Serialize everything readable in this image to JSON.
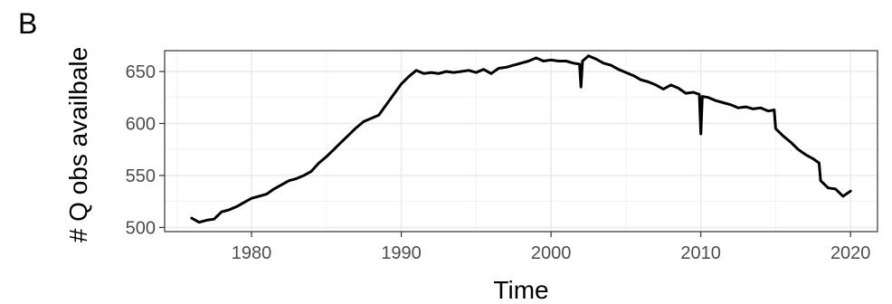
{
  "panel_label": "B",
  "chart_data": {
    "type": "line",
    "title": "",
    "xlabel": "Time",
    "ylabel": "# Q obs availbale",
    "xlim": [
      1974.2,
      2021.8
    ],
    "ylim": [
      496,
      670
    ],
    "x_ticks": [
      1980,
      1990,
      2000,
      2010,
      2020
    ],
    "x_tick_labels": [
      "1980",
      "1990",
      "2000",
      "2010",
      "2020"
    ],
    "y_ticks": [
      500,
      550,
      600,
      650
    ],
    "y_tick_labels": [
      "500",
      "550",
      "600",
      "650"
    ],
    "x_minor_ticks": [
      1975,
      1985,
      1995,
      2005,
      2015
    ],
    "y_minor_ticks": [
      525,
      575,
      625
    ],
    "grid": true,
    "theme": "bw",
    "line_color": "#000000",
    "series": [
      {
        "name": "",
        "x": [
          1976.0,
          1976.5,
          1977.0,
          1977.5,
          1978.0,
          1978.5,
          1979.0,
          1979.5,
          1980.0,
          1980.5,
          1981.0,
          1981.5,
          1982.0,
          1982.5,
          1983.0,
          1983.5,
          1984.0,
          1984.5,
          1985.0,
          1985.5,
          1986.0,
          1986.5,
          1987.0,
          1987.5,
          1988.0,
          1988.5,
          1989.0,
          1989.5,
          1990.0,
          1990.5,
          1991.0,
          1991.5,
          1992.0,
          1992.5,
          1993.0,
          1993.5,
          1994.0,
          1994.5,
          1995.0,
          1995.5,
          1996.0,
          1996.5,
          1997.0,
          1997.5,
          1998.0,
          1998.5,
          1999.0,
          1999.5,
          2000.0,
          2000.5,
          2001.0,
          2001.5,
          2001.9,
          2002.0,
          2002.1,
          2002.5,
          2003.0,
          2003.5,
          2004.0,
          2004.5,
          2005.0,
          2005.5,
          2006.0,
          2006.5,
          2007.0,
          2007.5,
          2008.0,
          2008.5,
          2009.0,
          2009.5,
          2009.9,
          2010.0,
          2010.1,
          2010.5,
          2011.0,
          2011.5,
          2012.0,
          2012.5,
          2013.0,
          2013.5,
          2014.0,
          2014.5,
          2014.9,
          2015.0,
          2015.5,
          2016.0,
          2016.5,
          2017.0,
          2017.5,
          2017.9,
          2018.0,
          2018.5,
          2019.0,
          2019.5,
          2020.0
        ],
        "values": [
          509,
          505,
          507,
          508,
          515,
          517,
          520,
          524,
          528,
          530,
          532,
          537,
          541,
          545,
          547,
          550,
          554,
          562,
          568,
          575,
          582,
          589,
          596,
          602,
          605,
          608,
          618,
          628,
          638,
          645,
          651,
          648,
          649,
          648,
          650,
          649,
          650,
          651,
          649,
          652,
          648,
          653,
          654,
          656,
          658,
          660,
          663,
          660,
          661,
          660,
          660,
          658,
          657,
          635,
          660,
          665,
          662,
          658,
          656,
          652,
          649,
          646,
          642,
          640,
          637,
          633,
          637,
          634,
          629,
          630,
          628,
          590,
          626,
          625,
          622,
          620,
          618,
          615,
          616,
          614,
          615,
          612,
          613,
          595,
          588,
          582,
          575,
          570,
          566,
          562,
          545,
          538,
          537,
          530,
          535
        ]
      }
    ]
  }
}
